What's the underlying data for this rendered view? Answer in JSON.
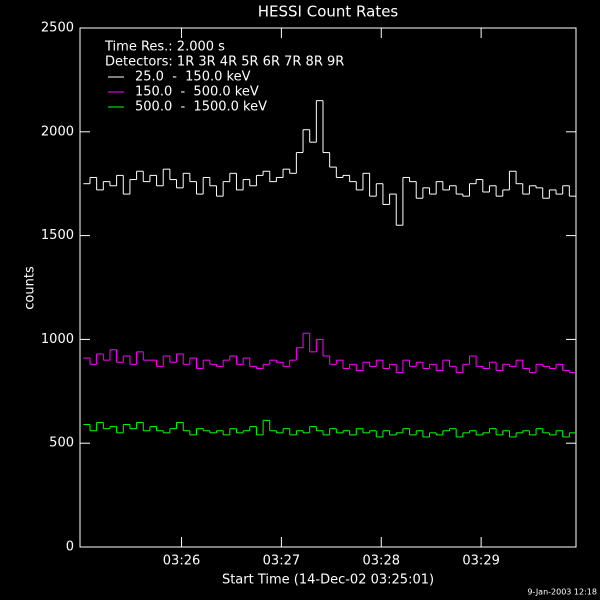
{
  "chart_data": {
    "type": "step",
    "title": "HESSI Count Rates",
    "xlabel": "Start Time (14-Dec-02 03:25:01)",
    "ylabel": "counts",
    "annotations": [
      "Time Res.: 2.000 s",
      "Detectors: 1R 3R 4R 5R 6R 7R 8R 9R"
    ],
    "footer": "9-Jan-2003 12:18",
    "xlim": [
      -2,
      296
    ],
    "xticks": [
      {
        "value": 59,
        "label": "03:26"
      },
      {
        "value": 119,
        "label": "03:27"
      },
      {
        "value": 179,
        "label": "03:28"
      },
      {
        "value": 239,
        "label": "03:29"
      }
    ],
    "ylim": [
      0,
      2500
    ],
    "yticks": [
      0,
      500,
      1000,
      1500,
      2000,
      2500
    ],
    "x": [
      0,
      4,
      8,
      12,
      16,
      20,
      24,
      28,
      32,
      36,
      40,
      44,
      48,
      52,
      56,
      60,
      64,
      68,
      72,
      76,
      80,
      84,
      88,
      92,
      96,
      100,
      104,
      108,
      112,
      116,
      120,
      124,
      128,
      132,
      136,
      140,
      144,
      148,
      152,
      156,
      160,
      164,
      168,
      172,
      176,
      180,
      184,
      188,
      192,
      196,
      200,
      204,
      208,
      212,
      216,
      220,
      224,
      228,
      232,
      236,
      240,
      244,
      248,
      252,
      256,
      260,
      264,
      268,
      272,
      276,
      280,
      284,
      288,
      292
    ],
    "step_width": 4,
    "series": [
      {
        "name": "25.0  -  150.0 keV",
        "color": "#ffffff",
        "values": [
          1750,
          1780,
          1720,
          1760,
          1740,
          1790,
          1700,
          1770,
          1810,
          1760,
          1790,
          1740,
          1820,
          1770,
          1730,
          1800,
          1760,
          1700,
          1780,
          1740,
          1690,
          1760,
          1800,
          1720,
          1770,
          1740,
          1790,
          1810,
          1760,
          1780,
          1820,
          1800,
          1900,
          2010,
          1950,
          2150,
          1900,
          1830,
          1780,
          1790,
          1760,
          1720,
          1800,
          1690,
          1750,
          1650,
          1700,
          1550,
          1780,
          1760,
          1680,
          1730,
          1700,
          1760,
          1720,
          1740,
          1700,
          1690,
          1750,
          1770,
          1710,
          1740,
          1690,
          1720,
          1810,
          1750,
          1700,
          1740,
          1730,
          1680,
          1720,
          1700,
          1740,
          1690
        ]
      },
      {
        "name": "150.0  -  500.0 keV",
        "color": "#ff00ff",
        "values": [
          910,
          880,
          930,
          900,
          950,
          890,
          920,
          880,
          940,
          900,
          900,
          870,
          920,
          890,
          930,
          880,
          910,
          860,
          900,
          880,
          870,
          900,
          920,
          880,
          910,
          870,
          860,
          880,
          900,
          890,
          870,
          900,
          960,
          1030,
          940,
          1000,
          920,
          880,
          900,
          860,
          880,
          850,
          890,
          870,
          900,
          860,
          880,
          840,
          900,
          870,
          890,
          860,
          880,
          850,
          900,
          870,
          840,
          880,
          920,
          870,
          860,
          890,
          850,
          880,
          870,
          900,
          860,
          840,
          880,
          870,
          860,
          880,
          850,
          840
        ]
      },
      {
        "name": "500.0  -  1500.0 keV",
        "color": "#00ff00",
        "values": [
          590,
          560,
          600,
          570,
          580,
          550,
          590,
          570,
          600,
          560,
          580,
          560,
          550,
          570,
          600,
          560,
          540,
          570,
          560,
          550,
          560,
          540,
          570,
          550,
          560,
          580,
          540,
          610,
          560,
          550,
          570,
          540,
          560,
          550,
          580,
          560,
          540,
          570,
          550,
          560,
          540,
          570,
          550,
          560,
          530,
          560,
          540,
          550,
          570,
          540,
          560,
          530,
          550,
          540,
          560,
          570,
          530,
          550,
          560,
          540,
          550,
          570,
          540,
          560,
          530,
          550,
          560,
          540,
          570,
          550,
          540,
          560,
          530,
          550
        ]
      }
    ]
  }
}
